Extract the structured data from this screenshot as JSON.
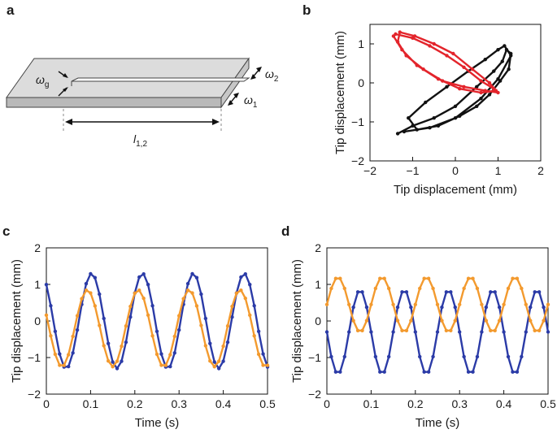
{
  "panels": {
    "a": {
      "label": "a",
      "symbols": {
        "omega_g": "ω",
        "omega_g_sub": "g",
        "omega_2": "ω",
        "omega_2_sub": "2",
        "omega_1": "ω",
        "omega_1_sub": "1",
        "length": "l",
        "length_sub": "1,2"
      }
    },
    "b": {
      "label": "b"
    },
    "c": {
      "label": "c"
    },
    "d": {
      "label": "d"
    }
  },
  "colors": {
    "red": "#e3242b",
    "black": "#111111",
    "blue": "#2b3ba7",
    "orange": "#f39a2e"
  },
  "chart_data": [
    {
      "id": "b",
      "type": "line",
      "xlabel": "Tip displacement (mm)",
      "ylabel": "Tip displacement (mm)",
      "xlim": [
        -2,
        2
      ],
      "ylim": [
        -2,
        1.5
      ],
      "xticks": [
        "−2",
        "−1",
        "0",
        "1",
        "2"
      ],
      "yticks": [
        "−2",
        "−1",
        "0",
        "1"
      ],
      "grid": false,
      "series": [
        {
          "name": "black-loop",
          "color": "#111111",
          "points": [
            [
              -1.35,
              -1.3
            ],
            [
              -1.0,
              -1.1
            ],
            [
              -0.5,
              -0.9
            ],
            [
              0.0,
              -0.6
            ],
            [
              0.5,
              -0.1
            ],
            [
              0.9,
              0.3
            ],
            [
              1.1,
              0.55
            ],
            [
              1.2,
              0.85
            ],
            [
              1.3,
              0.75
            ],
            [
              1.25,
              0.35
            ],
            [
              1.05,
              0.05
            ],
            [
              0.8,
              -0.3
            ],
            [
              0.5,
              -0.6
            ],
            [
              0.1,
              -0.85
            ],
            [
              -0.4,
              -1.1
            ],
            [
              -0.9,
              -1.2
            ],
            [
              -1.1,
              -0.9
            ],
            [
              -0.7,
              -0.5
            ],
            [
              -0.2,
              -0.1
            ],
            [
              0.3,
              0.3
            ],
            [
              0.7,
              0.6
            ],
            [
              1.0,
              0.85
            ],
            [
              1.15,
              0.95
            ],
            [
              1.3,
              0.7
            ],
            [
              1.0,
              0.1
            ],
            [
              0.6,
              -0.4
            ],
            [
              0.0,
              -0.9
            ],
            [
              -0.6,
              -1.15
            ],
            [
              -1.2,
              -1.25
            ]
          ]
        },
        {
          "name": "red-loop",
          "color": "#e3242b",
          "points": [
            [
              -1.4,
              1.25
            ],
            [
              -1.0,
              1.15
            ],
            [
              -0.6,
              0.95
            ],
            [
              -0.2,
              0.7
            ],
            [
              0.2,
              0.4
            ],
            [
              0.6,
              0.05
            ],
            [
              0.9,
              -0.15
            ],
            [
              1.0,
              -0.25
            ],
            [
              0.7,
              -0.2
            ],
            [
              0.2,
              -0.1
            ],
            [
              -0.3,
              0.05
            ],
            [
              -0.75,
              0.35
            ],
            [
              -1.15,
              0.7
            ],
            [
              -1.35,
              1.05
            ],
            [
              -1.3,
              1.3
            ],
            [
              -0.95,
              1.2
            ],
            [
              -0.5,
              1.0
            ],
            [
              -0.05,
              0.75
            ],
            [
              0.4,
              0.35
            ],
            [
              0.8,
              0.0
            ],
            [
              0.95,
              -0.2
            ],
            [
              0.6,
              -0.25
            ],
            [
              0.1,
              -0.15
            ],
            [
              -0.4,
              0.1
            ],
            [
              -0.9,
              0.45
            ],
            [
              -1.25,
              0.85
            ],
            [
              -1.45,
              1.2
            ]
          ]
        }
      ]
    },
    {
      "id": "c",
      "type": "line",
      "xlabel": "Time (s)",
      "ylabel": "Tip displacement (mm)",
      "xlim": [
        0,
        0.5
      ],
      "ylim": [
        -2,
        2
      ],
      "xticks": [
        "0",
        "0.1",
        "0.2",
        "0.3",
        "0.4",
        "0.5"
      ],
      "yticks": [
        "−2",
        "−1",
        "0",
        "1",
        "2"
      ],
      "grid": false,
      "series": [
        {
          "name": "blue",
          "color": "#2b3ba7",
          "amplitude": 1.3,
          "period": 0.115,
          "phase_deg": 130,
          "offset": 0.0
        },
        {
          "name": "orange",
          "color": "#f39a2e",
          "amplitude": 1.05,
          "period": 0.115,
          "phase_deg": 160,
          "offset": -0.2
        }
      ]
    },
    {
      "id": "d",
      "type": "line",
      "xlabel": "Time (s)",
      "ylabel": "Tip displacement (mm)",
      "xlim": [
        0,
        0.5
      ],
      "ylim": [
        -2,
        2
      ],
      "xticks": [
        "0",
        "0.1",
        "0.2",
        "0.3",
        "0.4",
        "0.5"
      ],
      "yticks": [
        "−2",
        "−1",
        "0",
        "1",
        "2"
      ],
      "grid": false,
      "series": [
        {
          "name": "blue",
          "color": "#2b3ba7",
          "amplitude": 1.15,
          "period": 0.1,
          "phase_deg": 180,
          "offset": -0.3
        },
        {
          "name": "orange",
          "color": "#f39a2e",
          "amplitude": 0.75,
          "period": 0.1,
          "phase_deg": 0,
          "offset": 0.45
        }
      ]
    }
  ]
}
